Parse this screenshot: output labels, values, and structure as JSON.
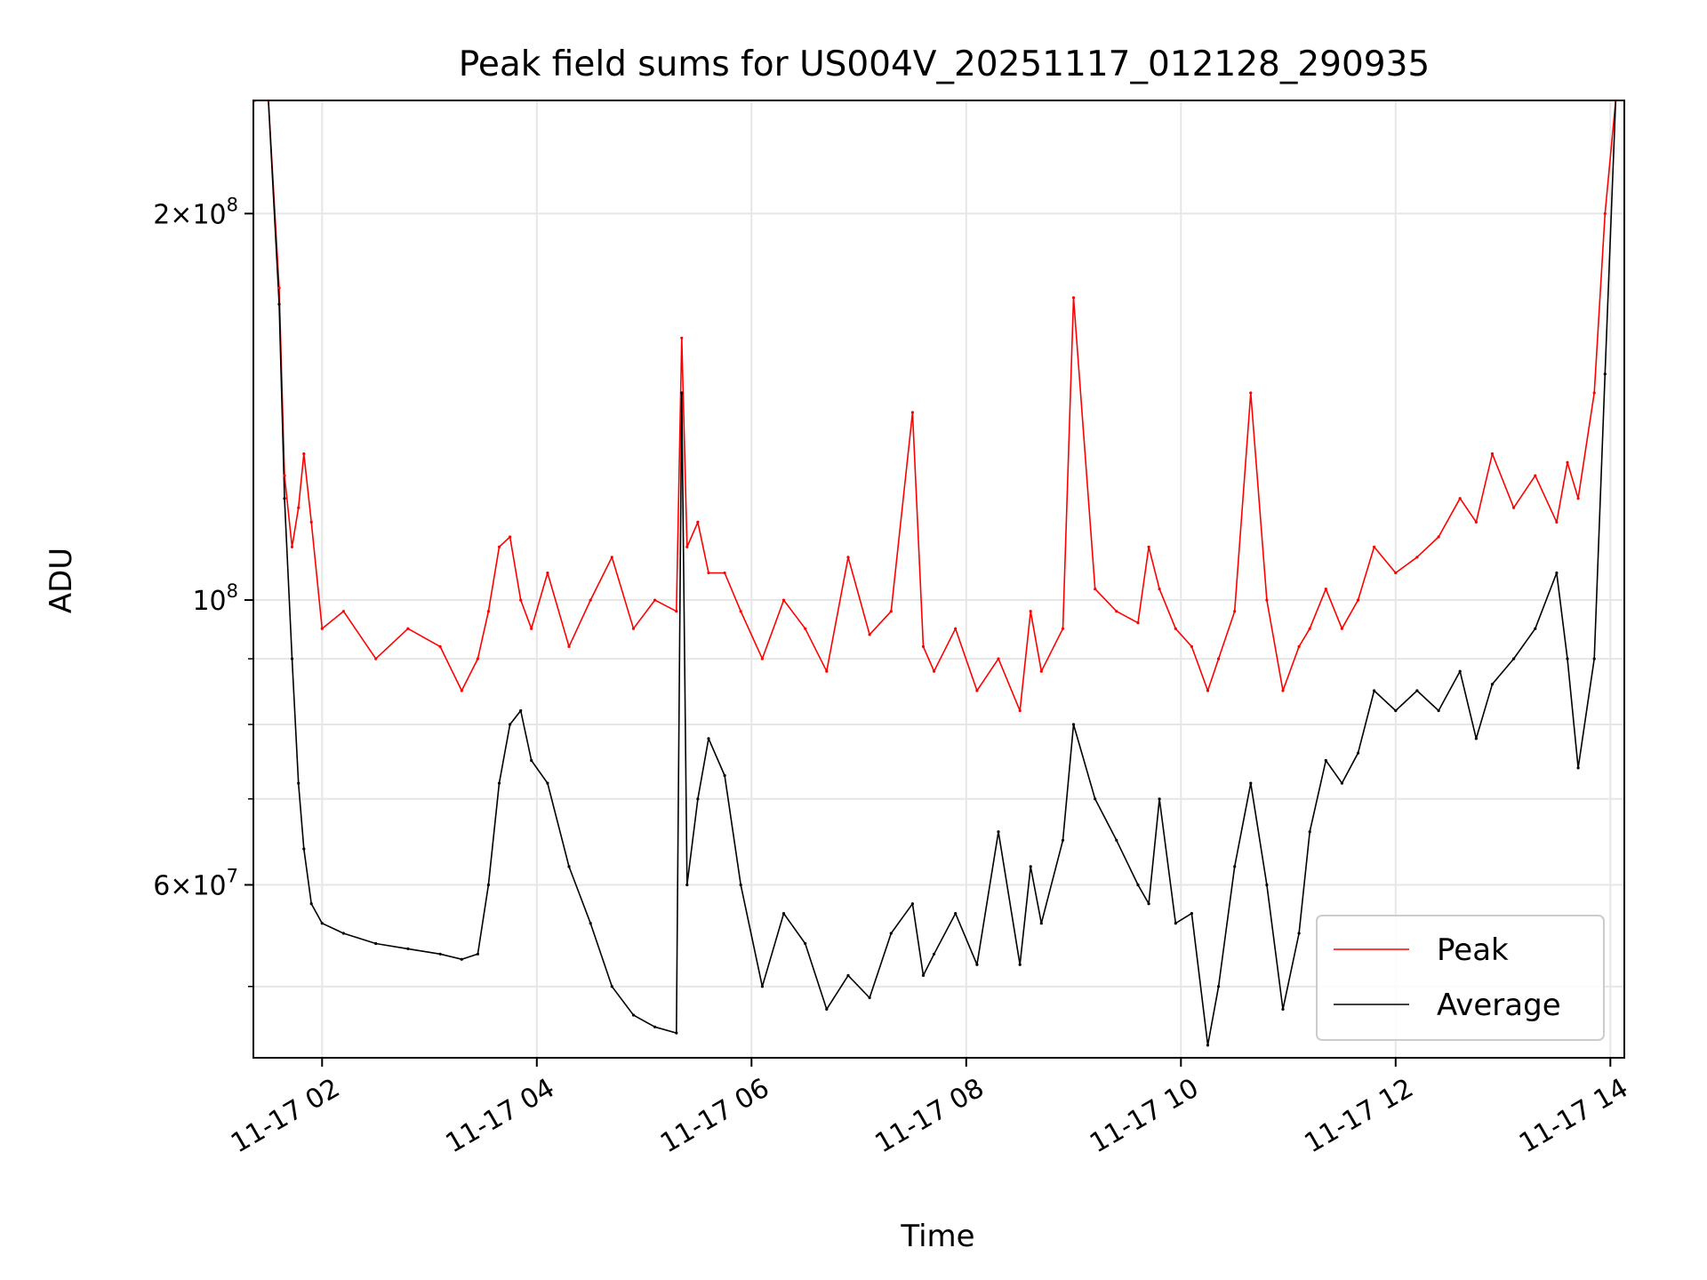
{
  "chart_data": {
    "type": "line",
    "title": "Peak field sums for US004V_20251117_012128_290935",
    "xlabel": "Time",
    "ylabel": "ADU",
    "yscale": "log",
    "grid": true,
    "legend_position": "lower-right",
    "xlim_hours": [
      1.36,
      14.13
    ],
    "ylim": [
      44000000,
      245000000
    ],
    "x_ticks": [
      {
        "hour": 2,
        "label": "11-17 02"
      },
      {
        "hour": 4,
        "label": "11-17 04"
      },
      {
        "hour": 6,
        "label": "11-17 06"
      },
      {
        "hour": 8,
        "label": "11-17 08"
      },
      {
        "hour": 10,
        "label": "11-17 10"
      },
      {
        "hour": 12,
        "label": "11-17 12"
      },
      {
        "hour": 14,
        "label": "11-17 14"
      }
    ],
    "y_major_ticks": [
      {
        "value": 60000000,
        "mantissa": "6",
        "exponent": "7"
      },
      {
        "value": 100000000,
        "mantissa": "",
        "exponent": "8"
      },
      {
        "value": 200000000,
        "mantissa": "2",
        "exponent": "8"
      }
    ],
    "y_minor_ticks": [
      50000000,
      70000000,
      80000000,
      90000000
    ],
    "legend": [
      {
        "name": "Peak",
        "color": "#ff0000"
      },
      {
        "name": "Average",
        "color": "#000000"
      }
    ],
    "series": [
      {
        "name": "Average",
        "color": "#000000",
        "x_hours": [
          1.37,
          1.5,
          1.6,
          1.65,
          1.72,
          1.78,
          1.83,
          1.9,
          2.0,
          2.2,
          2.5,
          2.8,
          3.1,
          3.3,
          3.45,
          3.55,
          3.65,
          3.75,
          3.85,
          3.95,
          4.1,
          4.3,
          4.5,
          4.7,
          4.9,
          5.1,
          5.3,
          5.35,
          5.4,
          5.5,
          5.6,
          5.75,
          5.9,
          6.1,
          6.3,
          6.5,
          6.7,
          6.9,
          7.1,
          7.3,
          7.5,
          7.6,
          7.7,
          7.9,
          8.1,
          8.3,
          8.5,
          8.6,
          8.7,
          8.9,
          9.0,
          9.2,
          9.4,
          9.6,
          9.7,
          9.8,
          9.95,
          10.1,
          10.25,
          10.35,
          10.5,
          10.65,
          10.8,
          10.95,
          11.1,
          11.2,
          11.35,
          11.5,
          11.65,
          11.8,
          12.0,
          12.2,
          12.4,
          12.6,
          12.75,
          12.9,
          13.1,
          13.3,
          13.5,
          13.6,
          13.7,
          13.85,
          13.95,
          14.05
        ],
        "values": [
          245000000,
          245000000,
          170000000,
          120000000,
          90000000,
          72000000,
          64000000,
          58000000,
          56000000,
          55000000,
          54000000,
          53500000,
          53000000,
          52500000,
          53000000,
          60000000,
          72000000,
          80000000,
          82000000,
          75000000,
          72000000,
          62000000,
          56000000,
          50000000,
          47500000,
          46500000,
          46000000,
          145000000,
          60000000,
          70000000,
          78000000,
          73000000,
          60000000,
          50000000,
          57000000,
          54000000,
          48000000,
          51000000,
          49000000,
          55000000,
          58000000,
          51000000,
          53000000,
          57000000,
          52000000,
          66000000,
          52000000,
          62000000,
          56000000,
          65000000,
          80000000,
          70000000,
          65000000,
          60000000,
          58000000,
          70000000,
          56000000,
          57000000,
          45000000,
          50000000,
          62000000,
          72000000,
          60000000,
          48000000,
          55000000,
          66000000,
          75000000,
          72000000,
          76000000,
          85000000,
          82000000,
          85000000,
          82000000,
          88000000,
          78000000,
          86000000,
          90000000,
          95000000,
          105000000,
          90000000,
          74000000,
          90000000,
          150000000,
          245000000
        ]
      },
      {
        "name": "Peak",
        "color": "#ff0000",
        "x_hours": [
          1.37,
          1.5,
          1.6,
          1.65,
          1.72,
          1.78,
          1.83,
          1.9,
          2.0,
          2.2,
          2.5,
          2.8,
          3.1,
          3.3,
          3.45,
          3.55,
          3.65,
          3.75,
          3.85,
          3.95,
          4.1,
          4.3,
          4.5,
          4.7,
          4.9,
          5.1,
          5.3,
          5.35,
          5.4,
          5.5,
          5.6,
          5.75,
          5.9,
          6.1,
          6.3,
          6.5,
          6.7,
          6.9,
          7.1,
          7.3,
          7.5,
          7.6,
          7.7,
          7.9,
          8.1,
          8.3,
          8.5,
          8.6,
          8.7,
          8.9,
          9.0,
          9.2,
          9.4,
          9.6,
          9.7,
          9.8,
          9.95,
          10.1,
          10.25,
          10.35,
          10.5,
          10.65,
          10.8,
          10.95,
          11.1,
          11.2,
          11.35,
          11.5,
          11.65,
          11.8,
          12.0,
          12.2,
          12.4,
          12.6,
          12.75,
          12.9,
          13.1,
          13.3,
          13.5,
          13.6,
          13.7,
          13.85,
          13.95,
          14.05
        ],
        "values": [
          245000000,
          245000000,
          175000000,
          125000000,
          110000000,
          118000000,
          130000000,
          115000000,
          95000000,
          98000000,
          90000000,
          95000000,
          92000000,
          85000000,
          90000000,
          98000000,
          110000000,
          112000000,
          100000000,
          95000000,
          105000000,
          92000000,
          100000000,
          108000000,
          95000000,
          100000000,
          98000000,
          160000000,
          110000000,
          115000000,
          105000000,
          105000000,
          98000000,
          90000000,
          100000000,
          95000000,
          88000000,
          108000000,
          94000000,
          98000000,
          140000000,
          92000000,
          88000000,
          95000000,
          85000000,
          90000000,
          82000000,
          98000000,
          88000000,
          95000000,
          172000000,
          102000000,
          98000000,
          96000000,
          110000000,
          102000000,
          95000000,
          92000000,
          85000000,
          90000000,
          98000000,
          145000000,
          100000000,
          85000000,
          92000000,
          95000000,
          102000000,
          95000000,
          100000000,
          110000000,
          105000000,
          108000000,
          112000000,
          120000000,
          115000000,
          130000000,
          118000000,
          125000000,
          115000000,
          128000000,
          120000000,
          145000000,
          200000000,
          245000000
        ]
      }
    ]
  }
}
